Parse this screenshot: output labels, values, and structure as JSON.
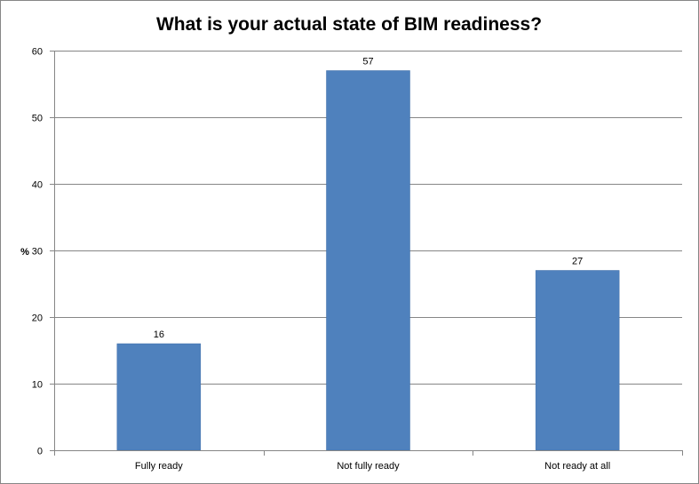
{
  "chart_data": {
    "type": "bar",
    "title": "What is your actual state of BIM readiness?",
    "xlabel": "",
    "ylabel": "%",
    "categories": [
      "Fully ready",
      "Not fully ready",
      "Not ready at all"
    ],
    "values": [
      16,
      57,
      27
    ],
    "data_labels": [
      "16",
      "57",
      "27"
    ],
    "ylim": [
      0,
      60
    ],
    "yticks": [
      "0",
      "10",
      "20",
      "30",
      "40",
      "50",
      "60"
    ],
    "grid": true,
    "legend": "none",
    "bar_color": "#4f81bd",
    "bar_border_color": "#3f6fa8",
    "grid_color": "#868686"
  }
}
